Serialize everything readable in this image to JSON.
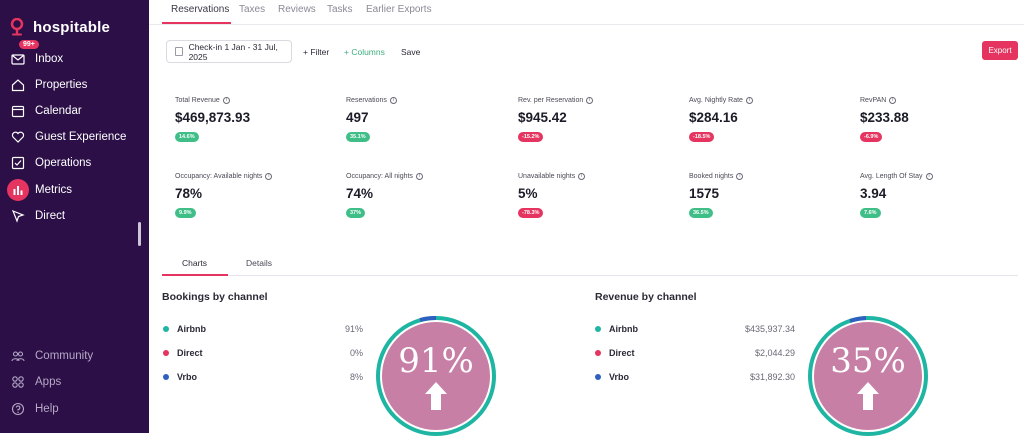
{
  "app": {
    "brand": "hospitable"
  },
  "sidebar": {
    "items": [
      {
        "label": "Inbox",
        "icon": "mail-icon",
        "badge": "99+"
      },
      {
        "label": "Properties",
        "icon": "home-icon"
      },
      {
        "label": "Calendar",
        "icon": "calendar-icon"
      },
      {
        "label": "Guest Experience",
        "icon": "heart-icon"
      },
      {
        "label": "Operations",
        "icon": "checkbox-icon"
      },
      {
        "label": "Metrics",
        "icon": "bar-chart-icon",
        "active": true
      },
      {
        "label": "Direct",
        "icon": "cursor-icon"
      }
    ],
    "footer": [
      {
        "label": "Community",
        "icon": "community-icon"
      },
      {
        "label": "Apps",
        "icon": "apps-icon"
      },
      {
        "label": "Help",
        "icon": "help-icon"
      }
    ]
  },
  "top_tabs": [
    "Reservations",
    "Taxes",
    "Reviews",
    "Tasks",
    "Earlier Exports"
  ],
  "toolbar": {
    "date_range": "Check-in 1 Jan - 31 Jul, 2025",
    "filter": "+ Filter",
    "columns": "+ Columns",
    "save": "Save",
    "export": "Export"
  },
  "kpis": [
    {
      "label": "Total Revenue",
      "value": "$469,873.93",
      "change": "14.6%",
      "trend": "up"
    },
    {
      "label": "Reservations",
      "value": "497",
      "change": "35.1%",
      "trend": "up"
    },
    {
      "label": "Rev. per Reservation",
      "value": "$945.42",
      "change": "-15.2%",
      "trend": "down"
    },
    {
      "label": "Avg. Nightly Rate",
      "value": "$284.16",
      "change": "-18.5%",
      "trend": "down"
    },
    {
      "label": "RevPAN",
      "value": "$233.88",
      "change": "-6.9%",
      "trend": "down"
    },
    {
      "label": "Occupancy: Available nights",
      "value": "78%",
      "change": "9.9%",
      "trend": "up"
    },
    {
      "label": "Occupancy: All nights",
      "value": "74%",
      "change": "37%",
      "trend": "up"
    },
    {
      "label": "Unavailable nights",
      "value": "5%",
      "change": "-78.3%",
      "trend": "down"
    },
    {
      "label": "Booked nights",
      "value": "1575",
      "change": "36.5%",
      "trend": "up"
    },
    {
      "label": "Avg. Length Of Stay",
      "value": "3.94",
      "change": "7.6%",
      "trend": "up"
    }
  ],
  "section_tabs": [
    "Charts",
    "Details"
  ],
  "charts": {
    "bookings": {
      "title": "Bookings by channel",
      "rows": [
        {
          "name": "Airbnb",
          "value": "91%",
          "color": "#1fb5a3"
        },
        {
          "name": "Direct",
          "value": "0%",
          "color": "#e5345f"
        },
        {
          "name": "Vrbo",
          "value": "8%",
          "color": "#2f5fbf"
        }
      ],
      "overlay": "91%"
    },
    "revenue": {
      "title": "Revenue by channel",
      "rows": [
        {
          "name": "Airbnb",
          "value": "$435,937.34",
          "color": "#1fb5a3"
        },
        {
          "name": "Direct",
          "value": "$2,044.29",
          "color": "#e5345f"
        },
        {
          "name": "Vrbo",
          "value": "$31,892.30",
          "color": "#2f5fbf"
        }
      ],
      "overlay": "35%"
    }
  },
  "colors": {
    "accent": "#e5345f",
    "sidebar": "#2b0f46",
    "up": "#3fbf87",
    "down": "#e5345f",
    "overlay": "#c77fa6"
  }
}
